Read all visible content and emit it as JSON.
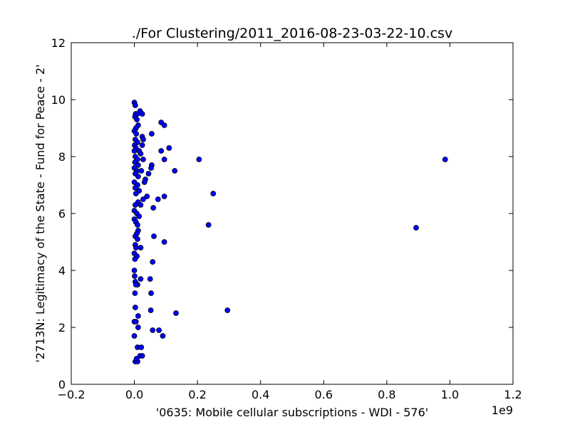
{
  "chart_data": {
    "type": "scatter",
    "title": "./For Clustering/2011_2016-08-23-03-22-10.csv",
    "xlabel": "'0635: Mobile cellular subscriptions - WDI - 576'",
    "ylabel": "'2713N: Legitimacy of the State - Fund for Peace - 2'",
    "x_offset_label": "1e9",
    "xlim": [
      -0.2,
      1.2
    ],
    "ylim": [
      0,
      12
    ],
    "x_ticks": [
      -0.2,
      0.0,
      0.2,
      0.4,
      0.6,
      0.8,
      1.0,
      1.2
    ],
    "x_tick_labels": [
      "−0.2",
      "0.0",
      "0.2",
      "0.4",
      "0.6",
      "0.8",
      "1.0",
      "1.2"
    ],
    "y_ticks": [
      0,
      2,
      4,
      6,
      8,
      10,
      12
    ],
    "y_tick_labels": [
      "0",
      "2",
      "4",
      "6",
      "8",
      "10",
      "12"
    ],
    "grid": false,
    "marker_color": "#0000ff",
    "marker_edge_color": "#000000",
    "points": [
      [
        0.0,
        9.9
      ],
      [
        0.003,
        9.8
      ],
      [
        0.004,
        9.5
      ],
      [
        0.01,
        9.5
      ],
      [
        0.018,
        9.6
      ],
      [
        0.025,
        9.5
      ],
      [
        0.002,
        9.4
      ],
      [
        0.008,
        9.3
      ],
      [
        0.085,
        9.2
      ],
      [
        0.095,
        9.1
      ],
      [
        0.012,
        9.1
      ],
      [
        0.005,
        9.0
      ],
      [
        0.0,
        8.9
      ],
      [
        0.006,
        8.8
      ],
      [
        0.055,
        8.8
      ],
      [
        0.025,
        8.7
      ],
      [
        0.028,
        8.6
      ],
      [
        0.003,
        8.6
      ],
      [
        0.01,
        8.5
      ],
      [
        0.001,
        8.4
      ],
      [
        0.005,
        8.3
      ],
      [
        0.025,
        8.4
      ],
      [
        0.11,
        8.3
      ],
      [
        0.085,
        8.2
      ],
      [
        0.0,
        8.2
      ],
      [
        0.015,
        8.2
      ],
      [
        0.02,
        8.1
      ],
      [
        0.003,
        8.0
      ],
      [
        0.01,
        7.9
      ],
      [
        0.028,
        7.9
      ],
      [
        0.095,
        7.9
      ],
      [
        0.205,
        7.9
      ],
      [
        0.985,
        7.9
      ],
      [
        0.002,
        7.8
      ],
      [
        0.012,
        7.7
      ],
      [
        0.055,
        7.7
      ],
      [
        0.053,
        7.6
      ],
      [
        0.0,
        7.6
      ],
      [
        0.008,
        7.5
      ],
      [
        0.022,
        7.5
      ],
      [
        0.128,
        7.5
      ],
      [
        0.045,
        7.4
      ],
      [
        0.003,
        7.4
      ],
      [
        0.012,
        7.3
      ],
      [
        0.035,
        7.2
      ],
      [
        0.0,
        7.1
      ],
      [
        0.032,
        7.1
      ],
      [
        0.01,
        7.0
      ],
      [
        0.003,
        6.9
      ],
      [
        0.015,
        6.8
      ],
      [
        0.25,
        6.7
      ],
      [
        0.005,
        6.7
      ],
      [
        0.095,
        6.6
      ],
      [
        0.04,
        6.6
      ],
      [
        0.028,
        6.5
      ],
      [
        0.075,
        6.5
      ],
      [
        0.012,
        6.4
      ],
      [
        0.003,
        6.3
      ],
      [
        0.02,
        6.3
      ],
      [
        0.06,
        6.2
      ],
      [
        0.0,
        6.1
      ],
      [
        0.008,
        6.0
      ],
      [
        0.015,
        5.9
      ],
      [
        0.0,
        5.8
      ],
      [
        0.005,
        5.7
      ],
      [
        0.01,
        5.6
      ],
      [
        0.235,
        5.6
      ],
      [
        0.893,
        5.5
      ],
      [
        0.012,
        5.4
      ],
      [
        0.008,
        5.3
      ],
      [
        0.062,
        5.2
      ],
      [
        0.003,
        5.2
      ],
      [
        0.01,
        5.1
      ],
      [
        0.095,
        5.0
      ],
      [
        0.003,
        4.9
      ],
      [
        0.005,
        4.8
      ],
      [
        0.02,
        4.8
      ],
      [
        0.0,
        4.6
      ],
      [
        0.008,
        4.5
      ],
      [
        0.002,
        4.4
      ],
      [
        0.058,
        4.3
      ],
      [
        0.0,
        4.0
      ],
      [
        0.001,
        3.8
      ],
      [
        0.02,
        3.7
      ],
      [
        0.05,
        3.7
      ],
      [
        0.003,
        3.6
      ],
      [
        0.01,
        3.5
      ],
      [
        0.005,
        3.5
      ],
      [
        0.002,
        3.2
      ],
      [
        0.053,
        3.2
      ],
      [
        0.003,
        2.7
      ],
      [
        0.052,
        2.6
      ],
      [
        0.295,
        2.6
      ],
      [
        0.132,
        2.5
      ],
      [
        0.012,
        2.4
      ],
      [
        0.0,
        2.2
      ],
      [
        0.005,
        2.2
      ],
      [
        0.012,
        2.0
      ],
      [
        0.058,
        1.9
      ],
      [
        0.078,
        1.9
      ],
      [
        0.0,
        1.7
      ],
      [
        0.09,
        1.7
      ],
      [
        0.01,
        1.3
      ],
      [
        0.022,
        1.3
      ],
      [
        0.018,
        1.0
      ],
      [
        0.025,
        1.0
      ],
      [
        0.003,
        0.8
      ],
      [
        0.01,
        0.8
      ],
      [
        0.007,
        0.9
      ]
    ]
  }
}
